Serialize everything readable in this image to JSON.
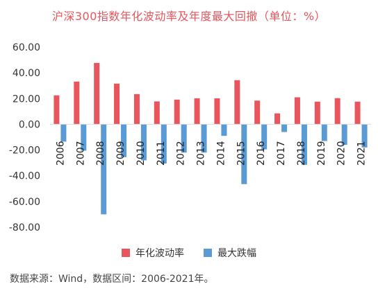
{
  "chart_data": {
    "type": "bar",
    "title": "沪深300指数年化波动率及年度最大回撤（单位：%）",
    "categories": [
      "2006",
      "2007",
      "2008",
      "2009",
      "2010",
      "2011",
      "2012",
      "2013",
      "2014",
      "2015",
      "2016",
      "2017",
      "2018",
      "2019",
      "2020",
      "2021"
    ],
    "series": [
      {
        "name": "年化波动率",
        "color": "#e8555c",
        "values": [
          22.5,
          33.2,
          47.7,
          31.6,
          23.5,
          17.8,
          19.2,
          20.2,
          20.2,
          34.3,
          18.4,
          8.5,
          21.0,
          17.6,
          20.3,
          17.6
        ]
      },
      {
        "name": "最大跌幅",
        "color": "#5b9bd5",
        "values": [
          -13.5,
          -20.5,
          -70.0,
          -25.5,
          -28.0,
          -30.5,
          -22.0,
          -22.0,
          -9.0,
          -46.5,
          -19.5,
          -6.0,
          -31.5,
          -13.0,
          -16.0,
          -18.0
        ]
      }
    ],
    "yticks": [
      "60.00",
      "40.00",
      "20.00",
      "0.00",
      "-20.00",
      "-40.00",
      "-60.00",
      "-80.00"
    ],
    "ylim": [
      -80,
      60
    ],
    "grid": false,
    "legend_position": "bottom"
  },
  "source_note": "数据来源：Wind，数据区间：2006-2021年。"
}
